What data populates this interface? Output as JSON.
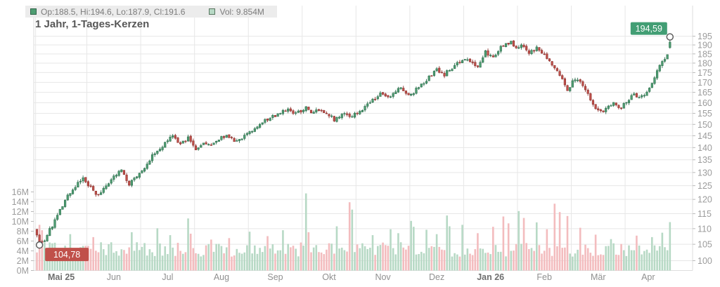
{
  "title": "1 Jahr, 1-Tages-Kerzen",
  "legend": {
    "ohlc_label": "Op:188.5, Hi:194.6, Lo:187.9, Cl:191.6",
    "volume_label": "Vol: 9.854M"
  },
  "chart_data": {
    "type": "candlestick",
    "title": "1 Jahr, 1-Tages-Kerzen",
    "price_axis": {
      "side": "right",
      "scale": "log",
      "min": 100,
      "max": 195,
      "tick_step": 5,
      "ticks": [
        100,
        105,
        110,
        115,
        120,
        125,
        130,
        135,
        140,
        145,
        150,
        155,
        160,
        165,
        170,
        175,
        180,
        185,
        190,
        195
      ]
    },
    "volume_axis": {
      "side": "left",
      "min": 0,
      "max": 16,
      "tick_step": 2,
      "unit": "M",
      "ticks": [
        0,
        2,
        4,
        6,
        8,
        10,
        12,
        14,
        16
      ]
    },
    "x_axis": {
      "total_candles": 248,
      "months": [
        {
          "label": "Mai 25",
          "start": 0,
          "bold": true
        },
        {
          "label": "Jun",
          "start": 20,
          "bold": false
        },
        {
          "label": "Jul",
          "start": 41,
          "bold": false
        },
        {
          "label": "Aug",
          "start": 62,
          "bold": false
        },
        {
          "label": "Sep",
          "start": 83,
          "bold": false
        },
        {
          "label": "Okt",
          "start": 104,
          "bold": false
        },
        {
          "label": "Nov",
          "start": 125,
          "bold": false
        },
        {
          "label": "Dez",
          "start": 146,
          "bold": false
        },
        {
          "label": "Jan 26",
          "start": 167,
          "bold": true
        },
        {
          "label": "Feb",
          "start": 188,
          "bold": false
        },
        {
          "label": "Mär",
          "start": 209,
          "bold": false
        },
        {
          "label": "Apr",
          "start": 230,
          "bold": false
        }
      ]
    },
    "last_candle": {
      "open": 188.5,
      "high": 194.6,
      "low": 187.9,
      "close": 191.6
    },
    "last_volume_m": 9.854,
    "markers": {
      "low": {
        "label": "104,78",
        "price": 104.78,
        "candle_index": 1
      },
      "last": {
        "label": "194,59",
        "price": 194.59
      }
    },
    "close_waypoints": [
      [
        0,
        108.5
      ],
      [
        1,
        105.6
      ],
      [
        3,
        106.5
      ],
      [
        6,
        111
      ],
      [
        9,
        116
      ],
      [
        12,
        121
      ],
      [
        15,
        125
      ],
      [
        18,
        127.5
      ],
      [
        21,
        124
      ],
      [
        24,
        121.2
      ],
      [
        27,
        124.5
      ],
      [
        30,
        128
      ],
      [
        33,
        131
      ],
      [
        36,
        125.8
      ],
      [
        39,
        128.5
      ],
      [
        42,
        131
      ],
      [
        45,
        136.5
      ],
      [
        48,
        139.5
      ],
      [
        51,
        142.5
      ],
      [
        53,
        145
      ],
      [
        56,
        141.2
      ],
      [
        59,
        144
      ],
      [
        62,
        139.8
      ],
      [
        65,
        142
      ],
      [
        68,
        141
      ],
      [
        71,
        143
      ],
      [
        74,
        145.8
      ],
      [
        77,
        142.2
      ],
      [
        80,
        144
      ],
      [
        83,
        146.5
      ],
      [
        86,
        148.5
      ],
      [
        89,
        151.5
      ],
      [
        92,
        153.5
      ],
      [
        95,
        155
      ],
      [
        98,
        157
      ],
      [
        100,
        154.5
      ],
      [
        103,
        156
      ],
      [
        105,
        158.5
      ],
      [
        107,
        154.5
      ],
      [
        110,
        156.5
      ],
      [
        113,
        155
      ],
      [
        116,
        152.3
      ],
      [
        119,
        155
      ],
      [
        122,
        153
      ],
      [
        125,
        155.5
      ],
      [
        128,
        158
      ],
      [
        131,
        161
      ],
      [
        134,
        164.3
      ],
      [
        137,
        162
      ],
      [
        140,
        166
      ],
      [
        142,
        166.8
      ],
      [
        145,
        163
      ],
      [
        147,
        165
      ],
      [
        150,
        169
      ],
      [
        153,
        172.5
      ],
      [
        156,
        176.5
      ],
      [
        159,
        174
      ],
      [
        162,
        177.5
      ],
      [
        165,
        180.5
      ],
      [
        167,
        183
      ],
      [
        170,
        180
      ],
      [
        172,
        179
      ],
      [
        175,
        186
      ],
      [
        178,
        183.5
      ],
      [
        181,
        188.5
      ],
      [
        184,
        191
      ],
      [
        185,
        192.5
      ],
      [
        187,
        188
      ],
      [
        189,
        189.5
      ],
      [
        192,
        185.5
      ],
      [
        195,
        188
      ],
      [
        198,
        184.5
      ],
      [
        201,
        179
      ],
      [
        204,
        173
      ],
      [
        207,
        166.5
      ],
      [
        209,
        170
      ],
      [
        211,
        172
      ],
      [
        214,
        166
      ],
      [
        217,
        159
      ],
      [
        219,
        156.5
      ],
      [
        221,
        155
      ],
      [
        223,
        158.5
      ],
      [
        225,
        160.5
      ],
      [
        227,
        157.2
      ],
      [
        229,
        159
      ],
      [
        231,
        161
      ],
      [
        233,
        164.5
      ],
      [
        235,
        162.5
      ],
      [
        237,
        164
      ],
      [
        239,
        167
      ],
      [
        241,
        173
      ],
      [
        243,
        179
      ],
      [
        245,
        182
      ],
      [
        246,
        183.8
      ],
      [
        247,
        191.6
      ]
    ],
    "volume_spikes_m": {
      "1": 9.3,
      "2": 8.2,
      "13": 7.4,
      "22": 6.8,
      "37": 7.8,
      "47": 8.6,
      "52": 7.2,
      "59": 10.6,
      "60": 7.5,
      "68": 6.3,
      "75": 6.6,
      "83": 7.9,
      "90": 7.0,
      "96": 8.2,
      "105": 15.7,
      "106": 7.8,
      "117": 9.0,
      "122": 13.9,
      "123": 12.4,
      "131": 7.2,
      "138": 8.4,
      "141": 7.6,
      "146": 10.1,
      "147": 8.9,
      "152": 8.3,
      "156": 7.4,
      "160": 11.2,
      "161": 9.0,
      "166": 9.3,
      "172": 7.6,
      "178": 8.9,
      "182": 11.0,
      "184": 9.6,
      "188": 12.1,
      "190": 10.7,
      "195": 9.8,
      "199": 8.4,
      "202": 13.6,
      "204": 11.9,
      "207": 11.1,
      "212": 8.7,
      "218": 7.3,
      "224": 6.4,
      "228": 5.4,
      "234": 7.1,
      "240": 6.8,
      "244": 7.7,
      "247": 9.854
    },
    "colors": {
      "up": "#4e9e72",
      "up_border": "#2f6e4e",
      "down": "#c0504a",
      "down_border": "#8e3431",
      "vol_up": "#b7d9c5",
      "vol_down": "#f3bcbe",
      "grid": "#e7e7e7",
      "plot_border": "#dedede",
      "badge_up": "#429e74",
      "badge_down": "#c0504a",
      "marker_stroke": "#555555"
    }
  }
}
